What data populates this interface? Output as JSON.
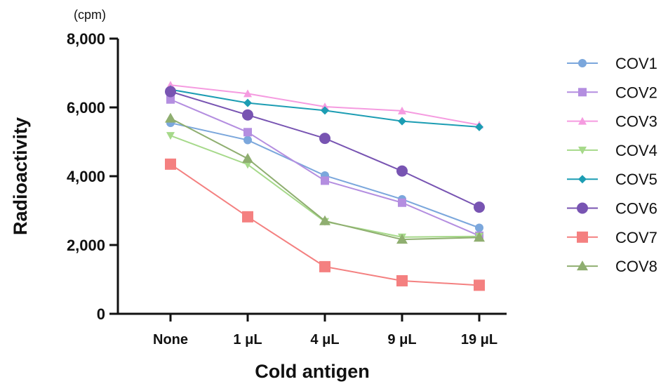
{
  "chart_data": {
    "type": "line",
    "unit": "(cpm)",
    "xlabel": "Cold antigen",
    "ylabel": "Radioactivity",
    "categories": [
      "None",
      "1 μL",
      "4 μL",
      "9 μL",
      "19 μL"
    ],
    "ylim": [
      0,
      8000
    ],
    "yticks": [
      0,
      2000,
      4000,
      6000,
      8000
    ],
    "ytick_labels": [
      "0",
      "2,000",
      "4,000",
      "6,000",
      "8,000"
    ],
    "legend_position": "right",
    "series": [
      {
        "name": "COV1",
        "color": "#7ba7dc",
        "marker": "circle-small",
        "values": [
          5550,
          5050,
          4020,
          3330,
          2500
        ]
      },
      {
        "name": "COV2",
        "color": "#b48ee0",
        "marker": "square-small",
        "values": [
          6230,
          5280,
          3870,
          3230,
          2270
        ]
      },
      {
        "name": "COV3",
        "color": "#f59be0",
        "marker": "triangle-up",
        "values": [
          6650,
          6400,
          6020,
          5900,
          5490
        ]
      },
      {
        "name": "COV4",
        "color": "#a6d98a",
        "marker": "triangle-down",
        "values": [
          5180,
          4340,
          2680,
          2230,
          2250
        ]
      },
      {
        "name": "COV5",
        "color": "#1c9db3",
        "marker": "diamond",
        "values": [
          6520,
          6130,
          5910,
          5600,
          5430
        ]
      },
      {
        "name": "COV6",
        "color": "#7854b2",
        "marker": "circle-large",
        "values": [
          6460,
          5780,
          5100,
          4150,
          3100
        ]
      },
      {
        "name": "COV7",
        "color": "#f48080",
        "marker": "square-large",
        "values": [
          4350,
          2820,
          1370,
          960,
          830
        ]
      },
      {
        "name": "COV8",
        "color": "#8fae70",
        "marker": "triangle-up-large",
        "values": [
          5680,
          4510,
          2700,
          2160,
          2220
        ]
      }
    ]
  }
}
